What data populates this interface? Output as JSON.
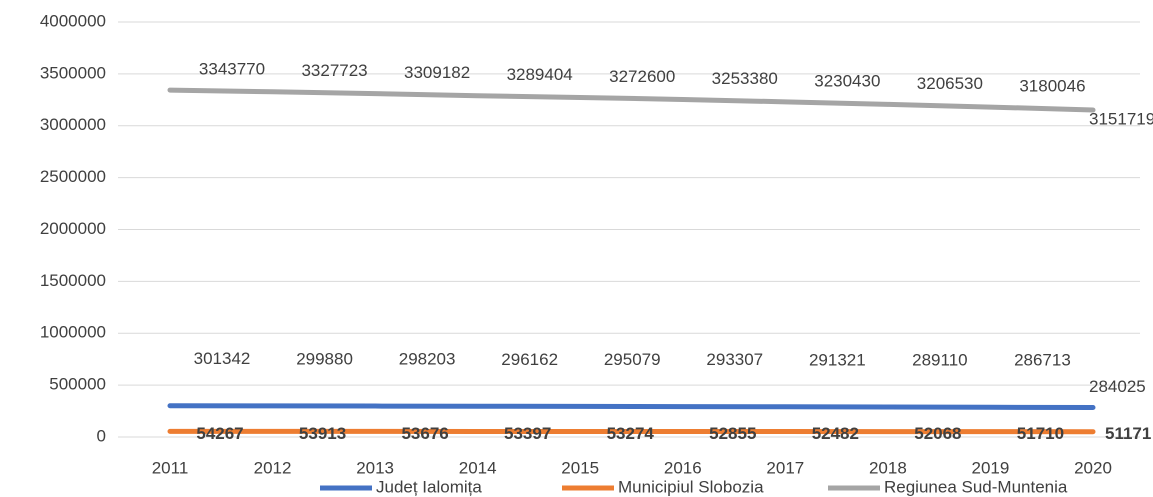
{
  "chart_data": {
    "type": "line",
    "categories": [
      "2011",
      "2012",
      "2013",
      "2014",
      "2015",
      "2016",
      "2017",
      "2018",
      "2019",
      "2020"
    ],
    "series": [
      {
        "name": "Județ Ialomița",
        "color": "#4472c4",
        "values": [
          301342,
          299880,
          298203,
          296162,
          295079,
          293307,
          291321,
          289110,
          286713,
          284025
        ]
      },
      {
        "name": "Municipiul Slobozia",
        "color": "#ed7d31",
        "values": [
          54267,
          53913,
          53676,
          53397,
          53274,
          52855,
          52482,
          52068,
          51710,
          51171
        ]
      },
      {
        "name": "Regiunea Sud-Muntenia",
        "color": "#a5a5a5",
        "values": [
          3343770,
          3327723,
          3309182,
          3289404,
          3272600,
          3253380,
          3230430,
          3206530,
          3180046,
          3151719
        ]
      }
    ],
    "ylim": [
      0,
      4000000
    ],
    "yticks": [
      0,
      500000,
      1000000,
      1500000,
      2000000,
      2500000,
      3000000,
      3500000,
      4000000
    ],
    "grid": true,
    "legend": "bottom"
  }
}
